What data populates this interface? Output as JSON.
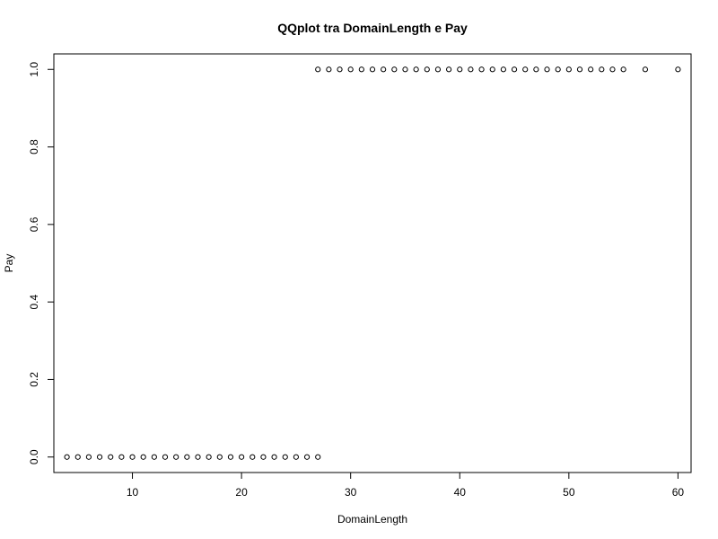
{
  "chart_data": {
    "type": "scatter",
    "title": "QQplot tra DomainLength e Pay",
    "xlabel": "DomainLength",
    "ylabel": "Pay",
    "xlim": [
      2.8,
      61.2
    ],
    "ylim": [
      -0.04,
      1.04
    ],
    "x_ticks": [
      10,
      20,
      30,
      40,
      50,
      60
    ],
    "y_ticks": [
      0.0,
      0.2,
      0.4,
      0.6,
      0.8,
      1.0
    ],
    "x_tick_labels": [
      "10",
      "20",
      "30",
      "40",
      "50",
      "60"
    ],
    "y_tick_labels": [
      "0.0",
      "0.2",
      "0.4",
      "0.6",
      "0.8",
      "1.0"
    ],
    "grid": false,
    "series": [
      {
        "marker": "open-circle",
        "points": [
          [
            4,
            0
          ],
          [
            5,
            0
          ],
          [
            6,
            0
          ],
          [
            7,
            0
          ],
          [
            8,
            0
          ],
          [
            9,
            0
          ],
          [
            10,
            0
          ],
          [
            11,
            0
          ],
          [
            12,
            0
          ],
          [
            13,
            0
          ],
          [
            14,
            0
          ],
          [
            15,
            0
          ],
          [
            16,
            0
          ],
          [
            17,
            0
          ],
          [
            18,
            0
          ],
          [
            19,
            0
          ],
          [
            20,
            0
          ],
          [
            21,
            0
          ],
          [
            22,
            0
          ],
          [
            23,
            0
          ],
          [
            24,
            0
          ],
          [
            25,
            0
          ],
          [
            26,
            0
          ],
          [
            27,
            0
          ],
          [
            27,
            1
          ],
          [
            28,
            1
          ],
          [
            29,
            1
          ],
          [
            30,
            1
          ],
          [
            31,
            1
          ],
          [
            32,
            1
          ],
          [
            33,
            1
          ],
          [
            34,
            1
          ],
          [
            35,
            1
          ],
          [
            36,
            1
          ],
          [
            37,
            1
          ],
          [
            38,
            1
          ],
          [
            39,
            1
          ],
          [
            40,
            1
          ],
          [
            41,
            1
          ],
          [
            42,
            1
          ],
          [
            43,
            1
          ],
          [
            44,
            1
          ],
          [
            45,
            1
          ],
          [
            46,
            1
          ],
          [
            47,
            1
          ],
          [
            48,
            1
          ],
          [
            49,
            1
          ],
          [
            50,
            1
          ],
          [
            51,
            1
          ],
          [
            52,
            1
          ],
          [
            53,
            1
          ],
          [
            54,
            1
          ],
          [
            55,
            1
          ],
          [
            57,
            1
          ],
          [
            60,
            1
          ]
        ]
      }
    ]
  }
}
